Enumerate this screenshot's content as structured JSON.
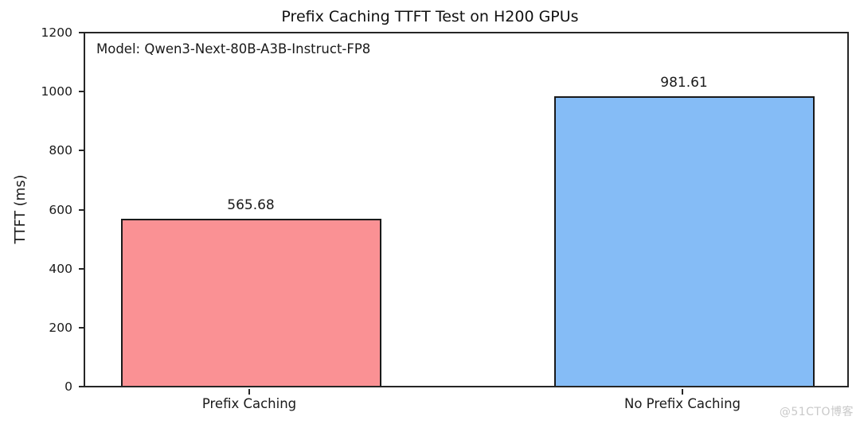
{
  "chart_data": {
    "type": "bar",
    "title": "Prefix Caching TTFT Test on H200 GPUs",
    "annotation": "Model: Qwen3-Next-80B-A3B-Instruct-FP8",
    "categories": [
      "Prefix Caching",
      "No Prefix Caching"
    ],
    "values": [
      565.68,
      981.61
    ],
    "value_labels": [
      "565.68",
      "981.61"
    ],
    "series": [
      {
        "name": "TTFT",
        "values": [
          565.68,
          981.61
        ]
      }
    ],
    "bar_colors": [
      "#fa9194",
      "#85bcf6"
    ],
    "bar_edge_color": "#1a1a1a",
    "xlabel": "",
    "ylabel": "TTFT (ms)",
    "ylim": [
      0,
      1200
    ],
    "yticks": [
      0,
      200,
      400,
      600,
      800,
      1000,
      1200
    ],
    "grid": false,
    "legend": null,
    "frame": "full-box"
  },
  "watermark": "@51CTO博客"
}
